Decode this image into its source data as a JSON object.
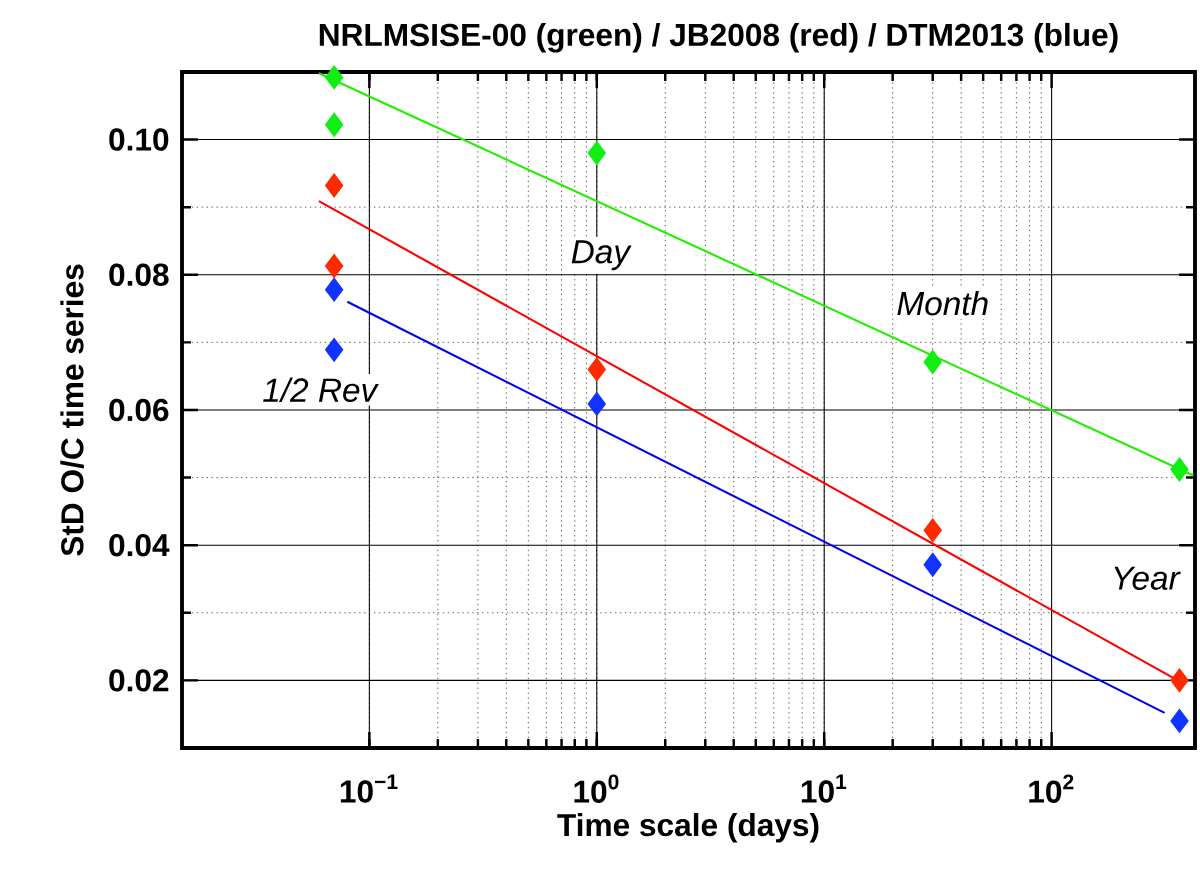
{
  "chart_data": {
    "type": "scatter",
    "title": "NRLMSISE-00 (green) / JB2008 (red) / DTM2013 (blue)",
    "xlabel": "Time scale (days)",
    "ylabel": "StD O/C time series",
    "log": "x",
    "grid": true,
    "marker": "diamond",
    "xlim": [
      0.015,
      427
    ],
    "ylim": [
      0.01,
      0.11
    ],
    "xticks": [
      {
        "value": 0.1,
        "label": "10$^{−1}$"
      },
      {
        "value": 1,
        "label": "10$^{0}$"
      },
      {
        "value": 10,
        "label": "10$^{1}$"
      },
      {
        "value": 100,
        "label": "10$^{2}$"
      }
    ],
    "yticks": [
      {
        "value": 0.02,
        "label": "0.02"
      },
      {
        "value": 0.04,
        "label": "0.04"
      },
      {
        "value": 0.06,
        "label": "0.06"
      },
      {
        "value": 0.08,
        "label": "0.08"
      },
      {
        "value": 0.1,
        "label": "0.10"
      }
    ],
    "series": [
      {
        "color": "#11ee11",
        "x": [
          0.07,
          0.07,
          1,
          30,
          365
        ],
        "values": [
          0.1092,
          0.1022,
          0.098,
          0.0671,
          0.0512
        ]
      },
      {
        "color": "#ff2a00",
        "x": [
          0.07,
          0.07,
          1,
          30,
          365
        ],
        "values": [
          0.0932,
          0.0813,
          0.066,
          0.0422,
          0.02
        ]
      },
      {
        "color": "#1133ff",
        "x": [
          0.07,
          0.07,
          1,
          30,
          365
        ],
        "values": [
          0.0778,
          0.0689,
          0.0609,
          0.0371,
          0.014
        ]
      },
      {
        "type": "line",
        "marker": "none",
        "color": "#22ee00",
        "x": [
          0.06,
          420
        ],
        "values": [
          0.1098,
          0.0503
        ]
      },
      {
        "type": "line",
        "marker": "none",
        "color": "#ff0000",
        "x": [
          0.06,
          341
        ],
        "values": [
          0.0909,
          0.0204
        ]
      },
      {
        "type": "line",
        "marker": "none",
        "color": "#0000ee",
        "x": [
          0.08,
          314
        ],
        "values": [
          0.076,
          0.0152
        ]
      }
    ],
    "annotations": [
      "1/2 Rev",
      "Day",
      "Month",
      "Year"
    ]
  }
}
